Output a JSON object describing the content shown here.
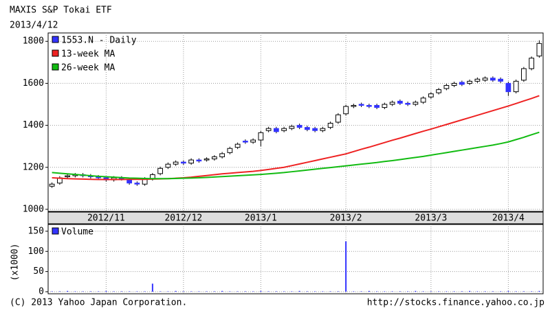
{
  "chart_data": [
    {
      "type": "candlestick",
      "title": "MAXIS S&P Tokai ETF",
      "subtitle": "2013/4/12",
      "categories": [
        null,
        null,
        null,
        null,
        null,
        null,
        null,
        "2012/11",
        null,
        null,
        null,
        null,
        null,
        null,
        null,
        null,
        null,
        "2012/12",
        null,
        null,
        null,
        null,
        null,
        null,
        null,
        null,
        null,
        "2013/1",
        null,
        null,
        null,
        null,
        null,
        null,
        null,
        null,
        null,
        null,
        "2013/2",
        null,
        null,
        null,
        null,
        null,
        null,
        null,
        null,
        null,
        null,
        "2013/3",
        null,
        null,
        null,
        null,
        null,
        null,
        null,
        null,
        null,
        "2013/4",
        null,
        null,
        null,
        null
      ],
      "series": [
        {
          "name": "1553.N - Daily",
          "color": "#3333ff",
          "open": [
            1110,
            1125,
            1155,
            1160,
            1165,
            1160,
            1155,
            1150,
            1140,
            1150,
            1140,
            1125,
            1120,
            1145,
            1170,
            1200,
            1215,
            1225,
            1220,
            1235,
            1235,
            1240,
            1250,
            1270,
            1295,
            1325,
            1320,
            1330,
            1375,
            1385,
            1375,
            1385,
            1400,
            1390,
            1385,
            1375,
            1390,
            1415,
            1455,
            1490,
            1500,
            1495,
            1495,
            1485,
            1500,
            1515,
            1505,
            1500,
            1510,
            1535,
            1555,
            1575,
            1590,
            1605,
            1600,
            1610,
            1615,
            1625,
            1620,
            1600,
            1560,
            1615,
            1670,
            1730
          ],
          "high": [
            1128,
            1158,
            1168,
            1173,
            1173,
            1168,
            1163,
            1158,
            1158,
            1158,
            1148,
            1133,
            1153,
            1173,
            1203,
            1223,
            1233,
            1233,
            1243,
            1243,
            1248,
            1258,
            1273,
            1298,
            1318,
            1333,
            1338,
            1373,
            1393,
            1393,
            1393,
            1403,
            1408,
            1398,
            1393,
            1393,
            1418,
            1458,
            1498,
            1503,
            1508,
            1503,
            1503,
            1508,
            1518,
            1523,
            1513,
            1518,
            1538,
            1558,
            1578,
            1598,
            1608,
            1613,
            1618,
            1628,
            1633,
            1633,
            1628,
            1608,
            1618,
            1678,
            1728,
            1805
          ],
          "low": [
            1102,
            1117,
            1147,
            1152,
            1152,
            1147,
            1142,
            1132,
            1132,
            1137,
            1117,
            1112,
            1112,
            1137,
            1162,
            1192,
            1207,
            1212,
            1212,
            1222,
            1227,
            1232,
            1242,
            1262,
            1287,
            1312,
            1312,
            1300,
            1367,
            1362,
            1367,
            1377,
            1382,
            1372,
            1367,
            1367,
            1382,
            1407,
            1447,
            1482,
            1487,
            1482,
            1477,
            1477,
            1492,
            1497,
            1492,
            1492,
            1502,
            1527,
            1547,
            1567,
            1582,
            1587,
            1592,
            1602,
            1607,
            1607,
            1602,
            1540,
            1552,
            1607,
            1662,
            1722
          ],
          "close": [
            1120,
            1150,
            1160,
            1165,
            1160,
            1155,
            1150,
            1140,
            1150,
            1145,
            1125,
            1120,
            1145,
            1165,
            1195,
            1215,
            1225,
            1220,
            1235,
            1230,
            1240,
            1250,
            1265,
            1290,
            1310,
            1320,
            1330,
            1365,
            1385,
            1370,
            1385,
            1395,
            1390,
            1380,
            1375,
            1385,
            1410,
            1450,
            1490,
            1495,
            1495,
            1490,
            1485,
            1500,
            1510,
            1505,
            1500,
            1510,
            1530,
            1550,
            1570,
            1590,
            1600,
            1595,
            1610,
            1620,
            1625,
            1615,
            1610,
            1560,
            1610,
            1670,
            1720,
            1790
          ]
        },
        {
          "name": "13-week MA",
          "color": "#ee2222",
          "values": [
            1150,
            1148,
            1146,
            1145,
            1144,
            1143,
            1142,
            1142,
            1142,
            1142,
            1143,
            1143,
            1143,
            1144,
            1145,
            1146,
            1148,
            1150,
            1153,
            1157,
            1161,
            1165,
            1169,
            1172,
            1175,
            1178,
            1181,
            1185,
            1190,
            1195,
            1200,
            1208,
            1216,
            1224,
            1232,
            1240,
            1248,
            1256,
            1264,
            1275,
            1286,
            1296,
            1307,
            1318,
            1329,
            1339,
            1350,
            1361,
            1372,
            1382,
            1393,
            1404,
            1415,
            1426,
            1437,
            1448,
            1459,
            1470,
            1481,
            1492,
            1504,
            1516,
            1528,
            1541
          ]
        },
        {
          "name": "26-week MA",
          "color": "#11bb11",
          "values": [
            1175,
            1172,
            1169,
            1166,
            1163,
            1160,
            1157,
            1155,
            1153,
            1151,
            1149,
            1148,
            1147,
            1146,
            1146,
            1146,
            1147,
            1148,
            1149,
            1150,
            1152,
            1154,
            1156,
            1158,
            1160,
            1162,
            1164,
            1166,
            1169,
            1172,
            1175,
            1179,
            1183,
            1187,
            1191,
            1195,
            1199,
            1203,
            1207,
            1211,
            1215,
            1219,
            1223,
            1228,
            1232,
            1237,
            1242,
            1247,
            1252,
            1258,
            1264,
            1270,
            1276,
            1282,
            1288,
            1294,
            1300,
            1306,
            1313,
            1321,
            1332,
            1343,
            1355,
            1367
          ]
        }
      ],
      "ylim": [
        990,
        1840
      ],
      "yticks": [
        1000,
        1200,
        1400,
        1600,
        1800
      ],
      "grid": true,
      "legend": "top-left"
    },
    {
      "type": "bar",
      "ylabel": "(x1000)",
      "series": [
        {
          "name": "Volume",
          "color": "#3333ff",
          "values": [
            1,
            1,
            2,
            1,
            1,
            1,
            1,
            2,
            1,
            1,
            1,
            1,
            1,
            20,
            1,
            1,
            2,
            1,
            1,
            1,
            1,
            1,
            2,
            1,
            1,
            1,
            1,
            2,
            1,
            1,
            1,
            1,
            2,
            1,
            1,
            1,
            1,
            1,
            125,
            1,
            1,
            2,
            1,
            1,
            1,
            1,
            1,
            2,
            1,
            1,
            1,
            1,
            1,
            1,
            2,
            1,
            1,
            1,
            1,
            2,
            1,
            1,
            1,
            2
          ]
        }
      ],
      "ylim": [
        0,
        160
      ],
      "yticks": [
        0,
        50,
        100,
        150
      ],
      "grid": true,
      "legend": "top-left"
    }
  ],
  "footer": {
    "copyright": "(C) 2013 Yahoo Japan Corporation.",
    "url": "http://stocks.finance.yahoo.co.jp"
  }
}
